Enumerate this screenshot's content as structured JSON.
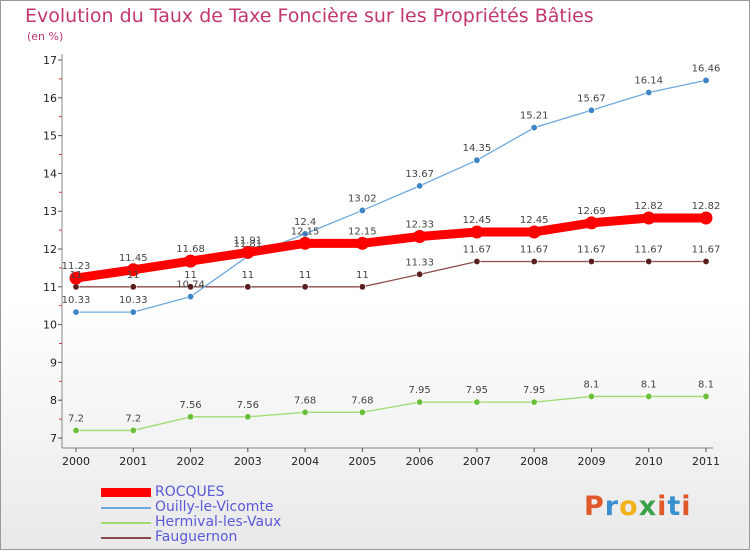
{
  "header": {
    "title": "Evolution du Taux de Taxe Foncière sur les Propriétés Bâties",
    "unit": "(en %)"
  },
  "logo": {
    "text": "Proxiti",
    "colors": [
      "#e0592a",
      "#3a8fd0",
      "#f2b21a",
      "#3aa34a",
      "#e0592a",
      "#3a8fd0",
      "#e0592a"
    ]
  },
  "chart_data": {
    "type": "line",
    "x": [
      "2000",
      "2001",
      "2002",
      "2003",
      "2004",
      "2005",
      "2006",
      "2007",
      "2008",
      "2009",
      "2010",
      "2011"
    ],
    "ylim": [
      7,
      17
    ],
    "yticks": [
      7,
      8,
      9,
      10,
      11,
      12,
      13,
      14,
      15,
      16,
      17
    ],
    "grid": false,
    "legend_position": "bottom-left",
    "series": [
      {
        "name": "ROCQUES",
        "color": "#ff0000",
        "marker": "#ff0000",
        "values": [
          11.23,
          11.45,
          11.68,
          11.91,
          12.15,
          12.15,
          12.33,
          12.45,
          12.45,
          12.69,
          12.82,
          12.82
        ],
        "labels": [
          "11.23",
          "11.45",
          "11.68",
          "11.91",
          "12.15",
          "12.15",
          "12.33",
          "12.45",
          "12.45",
          "12.69",
          "12.82",
          "12.82"
        ]
      },
      {
        "name": "Ouilly-le-Vicomte",
        "color": "#6fa8dc",
        "marker": "#3d85c6",
        "values": [
          10.33,
          10.33,
          10.74,
          11.81,
          12.4,
          13.02,
          13.67,
          14.35,
          15.21,
          15.67,
          16.14,
          16.46
        ],
        "labels": [
          "10.33",
          "10.33",
          "10.74",
          "11.81",
          "12.4",
          "13.02",
          "13.67",
          "14.35",
          "15.21",
          "15.67",
          "16.14",
          "16.46"
        ]
      },
      {
        "name": "Hermival-les-Vaux",
        "color": "#9fdc6f",
        "marker": "#6abf3a",
        "values": [
          7.2,
          7.2,
          7.56,
          7.56,
          7.68,
          7.68,
          7.95,
          7.95,
          7.95,
          8.1,
          8.1,
          8.1
        ],
        "labels": [
          "7.2",
          "7.2",
          "7.56",
          "7.56",
          "7.68",
          "7.68",
          "7.95",
          "7.95",
          "7.95",
          "8.1",
          "8.1",
          "8.1"
        ]
      },
      {
        "name": "Fauguernon",
        "color": "#8a4a4a",
        "marker": "#5a1e1e",
        "values": [
          11,
          11,
          11,
          11,
          11,
          11,
          11.33,
          11.67,
          11.67,
          11.67,
          11.67,
          11.67
        ],
        "labels": [
          "11",
          "11",
          "11",
          "11",
          "11",
          "11",
          "11.33",
          "11.67",
          "11.67",
          "11.67",
          "11.67",
          "11.67"
        ]
      }
    ]
  }
}
